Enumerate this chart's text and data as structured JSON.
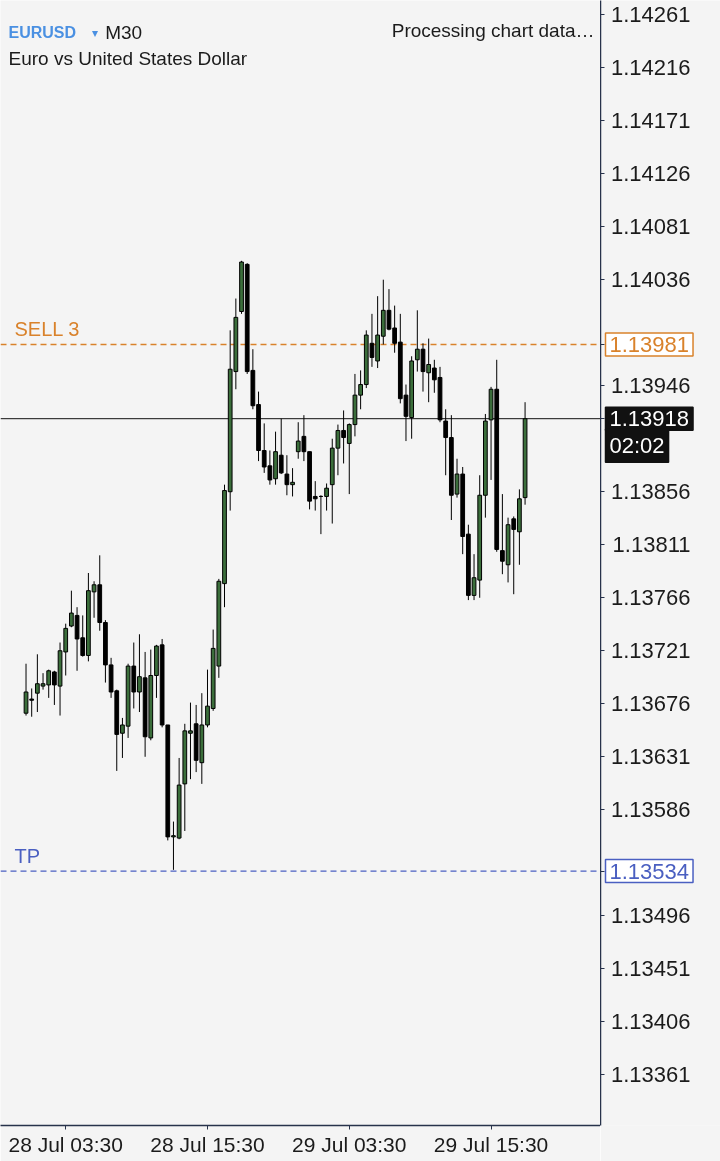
{
  "chart_data": {
    "type": "candlestick",
    "title": "EURUSD ▾ M30",
    "subtitle": "Euro vs United States Dollar",
    "annotations": [
      "Processing chart data…",
      "02:02"
    ],
    "categories": [
      null,
      null,
      null,
      null,
      null,
      null,
      null,
      "28 Jul 03:30",
      null,
      null,
      null,
      null,
      null,
      null,
      null,
      null,
      null,
      null,
      null,
      null,
      null,
      null,
      null,
      null,
      null,
      null,
      null,
      null,
      null,
      null,
      null,
      null,
      "28 Jul 15:30",
      null,
      null,
      null,
      null,
      null,
      null,
      null,
      null,
      null,
      null,
      null,
      null,
      null,
      null,
      null,
      null,
      null,
      null,
      null,
      null,
      null,
      null,
      null,
      null,
      "29 Jul 03:30",
      null,
      null,
      null,
      null,
      null,
      null,
      null,
      null,
      null,
      null,
      null,
      null,
      null,
      null,
      null,
      null,
      null,
      null,
      null,
      null,
      null,
      null,
      null,
      null,
      "29 Jul 15:30",
      null,
      null,
      null,
      null,
      null,
      null
    ],
    "ohlc": [
      [
        1.13668,
        1.1371,
        1.13666,
        1.13686
      ],
      [
        1.1368,
        1.13689,
        1.13665,
        1.13679
      ],
      [
        1.13685,
        1.13718,
        1.13669,
        1.13693
      ],
      [
        1.13691,
        1.13702,
        1.13688,
        1.13693
      ],
      [
        1.13692,
        1.13705,
        1.13681,
        1.13704
      ],
      [
        1.13703,
        1.13704,
        1.13675,
        1.13692
      ],
      [
        1.13691,
        1.13728,
        1.13666,
        1.13721
      ],
      [
        1.1372,
        1.13744,
        1.137,
        1.1374
      ],
      [
        1.13742,
        1.13772,
        1.13741,
        1.13753
      ],
      [
        1.13751,
        1.13758,
        1.13704,
        1.13731
      ],
      [
        1.13732,
        1.13751,
        1.13716,
        1.13717
      ],
      [
        1.13717,
        1.13787,
        1.13712,
        1.13772
      ],
      [
        1.13771,
        1.1378,
        1.13749,
        1.13777
      ],
      [
        1.13777,
        1.13802,
        1.13738,
        1.13745
      ],
      [
        1.13745,
        1.13747,
        1.13694,
        1.13709
      ],
      [
        1.13709,
        1.13715,
        1.13681,
        1.13686
      ],
      [
        1.13687,
        1.13688,
        1.13619,
        1.1365
      ],
      [
        1.13651,
        1.13664,
        1.1363,
        1.13658
      ],
      [
        1.13657,
        1.1371,
        1.13647,
        1.13708
      ],
      [
        1.13708,
        1.13728,
        1.13672,
        1.13686
      ],
      [
        1.13686,
        1.13735,
        1.13669,
        1.13699
      ],
      [
        1.13698,
        1.1372,
        1.13631,
        1.13648
      ],
      [
        1.13647,
        1.13722,
        1.13645,
        1.137
      ],
      [
        1.137,
        1.13726,
        1.13681,
        1.13725
      ],
      [
        1.13726,
        1.13731,
        1.13656,
        1.13658
      ],
      [
        1.13658,
        1.13658,
        1.1356,
        1.13563
      ],
      [
        1.13563,
        1.13576,
        1.13535,
        1.13564
      ],
      [
        1.13562,
        1.1363,
        1.13561,
        1.13607
      ],
      [
        1.13608,
        1.13659,
        1.13568,
        1.13653
      ],
      [
        1.13651,
        1.13677,
        1.13612,
        1.13653
      ],
      [
        1.13659,
        1.13675,
        1.13618,
        1.13628
      ],
      [
        1.13626,
        1.13685,
        1.13608,
        1.13658
      ],
      [
        1.13658,
        1.13705,
        1.13656,
        1.13674
      ],
      [
        1.13672,
        1.13739,
        1.1367,
        1.13723
      ],
      [
        1.13708,
        1.13782,
        1.13698,
        1.1378
      ],
      [
        1.13778,
        1.13862,
        1.13758,
        1.13857
      ],
      [
        1.13856,
        1.13993,
        1.1384,
        1.1396
      ],
      [
        1.13958,
        1.1402,
        1.13943,
        1.14004
      ],
      [
        1.14009,
        1.14052,
        1.14007,
        1.14051
      ],
      [
        1.14049,
        1.1405,
        1.13956,
        1.13958
      ],
      [
        1.13959,
        1.13977,
        1.13926,
        1.13929
      ],
      [
        1.1393,
        1.13941,
        1.13882,
        1.13891
      ],
      [
        1.13891,
        1.13914,
        1.13872,
        1.13877
      ],
      [
        1.13878,
        1.13891,
        1.13862,
        1.13866
      ],
      [
        1.13867,
        1.13907,
        1.13862,
        1.1389
      ],
      [
        1.13887,
        1.13918,
        1.13871,
        1.13872
      ],
      [
        1.13871,
        1.13887,
        1.13853,
        1.13862
      ],
      [
        1.13862,
        1.13876,
        1.13852,
        1.13864
      ],
      [
        1.1389,
        1.13915,
        1.13884,
        1.13899
      ],
      [
        1.13903,
        1.13921,
        1.13882,
        1.1389
      ],
      [
        1.1389,
        1.1389,
        1.13841,
        1.13848
      ],
      [
        1.13852,
        1.13865,
        1.1384,
        1.1385
      ],
      [
        1.13852,
        1.13853,
        1.1382,
        1.13852
      ],
      [
        1.13852,
        1.13863,
        1.1384,
        1.13859
      ],
      [
        1.13862,
        1.13901,
        1.13829,
        1.13893
      ],
      [
        1.13893,
        1.13913,
        1.1387,
        1.13908
      ],
      [
        1.13908,
        1.13925,
        1.1388,
        1.13902
      ],
      [
        1.13897,
        1.13914,
        1.13854,
        1.13913
      ],
      [
        1.13913,
        1.13956,
        1.13903,
        1.13938
      ],
      [
        1.13938,
        1.13959,
        1.13926,
        1.13947
      ],
      [
        1.13947,
        1.13993,
        1.13944,
        1.13989
      ],
      [
        1.13982,
        1.14007,
        1.13962,
        1.1397
      ],
      [
        1.13967,
        1.14022,
        1.13961,
        1.13989
      ],
      [
        1.13988,
        1.14036,
        1.13981,
        1.1401
      ],
      [
        1.1401,
        1.14028,
        1.13993,
        1.13994
      ],
      [
        1.13995,
        1.14014,
        1.13974,
        1.13982
      ],
      [
        1.13983,
        1.14007,
        1.13931,
        1.13935
      ],
      [
        1.13938,
        1.13947,
        1.13899,
        1.1392
      ],
      [
        1.13919,
        1.13971,
        1.13901,
        1.13967
      ],
      [
        1.13968,
        1.1401,
        1.13958,
        1.13977
      ],
      [
        1.13977,
        1.13982,
        1.13941,
        1.13958
      ],
      [
        1.13957,
        1.13986,
        1.13932,
        1.13964
      ],
      [
        1.13961,
        1.13968,
        1.1394,
        1.13951
      ],
      [
        1.13953,
        1.13962,
        1.13915,
        1.13917
      ],
      [
        1.13916,
        1.13926,
        1.1387,
        1.13902
      ],
      [
        1.13902,
        1.13921,
        1.13832,
        1.13853
      ],
      [
        1.13854,
        1.13884,
        1.13851,
        1.13871
      ],
      [
        1.13871,
        1.13877,
        1.13803,
        1.13818
      ],
      [
        1.1382,
        1.13828,
        1.13764,
        1.13768
      ],
      [
        1.13768,
        1.13803,
        1.13764,
        1.13783
      ],
      [
        1.13781,
        1.1387,
        1.13766,
        1.13853
      ],
      [
        1.13853,
        1.13922,
        1.13834,
        1.13916
      ],
      [
        1.13917,
        1.13945,
        1.13866,
        1.13943
      ],
      [
        1.13943,
        1.13968,
        1.13805,
        1.13807
      ],
      [
        1.13806,
        1.13854,
        1.13786,
        1.13797
      ],
      [
        1.13794,
        1.13834,
        1.13779,
        1.13828
      ],
      [
        1.13833,
        1.13835,
        1.13769,
        1.13824
      ],
      [
        1.13822,
        1.13858,
        1.13794,
        1.1385
      ],
      [
        1.13851,
        1.13932,
        1.13845,
        1.13918
      ]
    ],
    "colors": [
      "#3b6e3b",
      "#000000",
      "#3b6e3b",
      "#3b6e3b",
      "#3b6e3b",
      "#000000",
      "#3b6e3b",
      "#3b6e3b",
      "#3b6e3b",
      "#000000",
      "#000000",
      "#3b6e3b",
      "#3b6e3b",
      "#000000",
      "#000000",
      "#000000",
      "#000000",
      "#3b6e3b",
      "#3b6e3b",
      "#000000",
      "#3b6e3b",
      "#000000",
      "#3b6e3b",
      "#3b6e3b",
      "#000000",
      "#000000",
      "#3b6e3b",
      "#3b6e3b",
      "#3b6e3b",
      "#3b6e3b",
      "#000000",
      "#3b6e3b",
      "#3b6e3b",
      "#3b6e3b",
      "#3b6e3b",
      "#3b6e3b",
      "#3b6e3b",
      "#3b6e3b",
      "#3b6e3b",
      "#000000",
      "#000000",
      "#000000",
      "#000000",
      "#000000",
      "#3b6e3b",
      "#000000",
      "#000000",
      "#3b6e3b",
      "#3b6e3b",
      "#000000",
      "#000000",
      "#000000",
      "#000000",
      "#3b6e3b",
      "#3b6e3b",
      "#3b6e3b",
      "#000000",
      "#3b6e3b",
      "#3b6e3b",
      "#3b6e3b",
      "#3b6e3b",
      "#000000",
      "#3b6e3b",
      "#3b6e3b",
      "#000000",
      "#000000",
      "#000000",
      "#000000",
      "#3b6e3b",
      "#3b6e3b",
      "#000000",
      "#3b6e3b",
      "#000000",
      "#000000",
      "#000000",
      "#000000",
      "#3b6e3b",
      "#000000",
      "#000000",
      "#3b6e3b",
      "#3b6e3b",
      "#3b6e3b",
      "#3b6e3b",
      "#000000",
      "#000000",
      "#3b6e3b",
      "#000000",
      "#3b6e3b",
      "#3b6e3b"
    ],
    "ylim": [
      1.13318,
      1.14273
    ],
    "yticks": [
      1.13361,
      1.13406,
      1.13451,
      1.13496,
      1.13534,
      1.13586,
      1.13631,
      1.13676,
      1.13721,
      1.13766,
      1.13811,
      1.13856,
      1.13918,
      1.13946,
      1.13981,
      1.14036,
      1.14081,
      1.14126,
      1.14171,
      1.14216,
      1.14261
    ],
    "ref_lines": [
      {
        "axis": "y",
        "value": 1.13981,
        "label": "SELL 3",
        "color": "#d9822b",
        "line_style": "dashed"
      },
      {
        "axis": "y",
        "value": 1.13534,
        "label": "TP",
        "color": "#4a5fc1",
        "line_style": "dashed"
      },
      {
        "axis": "y",
        "value": 1.13918,
        "color": "#111111",
        "line_style": "solid"
      }
    ]
  }
}
